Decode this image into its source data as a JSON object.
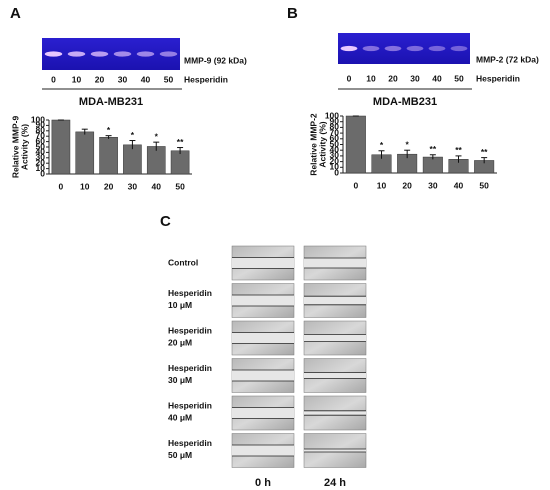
{
  "chart_data": [
    {
      "type": "bar",
      "panel_label": "A",
      "gel_label": "MMP-9 (92 kDa)",
      "gel_lanes": [
        "0",
        "10",
        "20",
        "30",
        "40",
        "50"
      ],
      "treatment": "Hesperidin",
      "cell_line": "MDA-MB231",
      "ylabel": [
        "Relative MMP-9",
        "Activity (%)"
      ],
      "categories": [
        "0",
        "10",
        "20",
        "30",
        "40",
        "50"
      ],
      "values": [
        100,
        78,
        68,
        54,
        51,
        43
      ],
      "errors": [
        0,
        5,
        3,
        8,
        8,
        6
      ],
      "annotations": [
        null,
        null,
        "*",
        "*",
        "*",
        "**"
      ],
      "color": "#6b6b6b",
      "ylim": [
        0,
        100
      ],
      "yticks": [
        0,
        10,
        20,
        30,
        40,
        50,
        60,
        70,
        80,
        90,
        100
      ]
    },
    {
      "type": "bar",
      "panel_label": "B",
      "gel_label": "MMP-2 (72 kDa)",
      "gel_lanes": [
        "0",
        "10",
        "20",
        "30",
        "40",
        "50"
      ],
      "treatment": "Hesperidin",
      "cell_line": "MDA-MB231",
      "ylabel": [
        "Relative MMP-2",
        "Activity (%)"
      ],
      "categories": [
        "0",
        "10",
        "20",
        "30",
        "40",
        "50"
      ],
      "values": [
        100,
        32,
        33,
        28,
        24,
        22
      ],
      "errors": [
        0,
        7,
        7,
        4,
        6,
        5
      ],
      "annotations": [
        null,
        "*",
        "*",
        "**",
        "**",
        "**"
      ],
      "color": "#6b6b6b",
      "ylim": [
        0,
        100
      ],
      "yticks": [
        0,
        10,
        20,
        30,
        40,
        50,
        60,
        70,
        80,
        90,
        100
      ]
    }
  ],
  "migration": {
    "panel_label": "C",
    "rows": [
      [
        "Control"
      ],
      [
        "Hesperidin",
        "10 μM"
      ],
      [
        "Hesperidin",
        "20 μM"
      ],
      [
        "Hesperidin",
        "30 μM"
      ],
      [
        "Hesperidin",
        "40 μM"
      ],
      [
        "Hesperidin",
        "50 μM"
      ]
    ],
    "columns": [
      "0 h",
      "24 h"
    ]
  }
}
